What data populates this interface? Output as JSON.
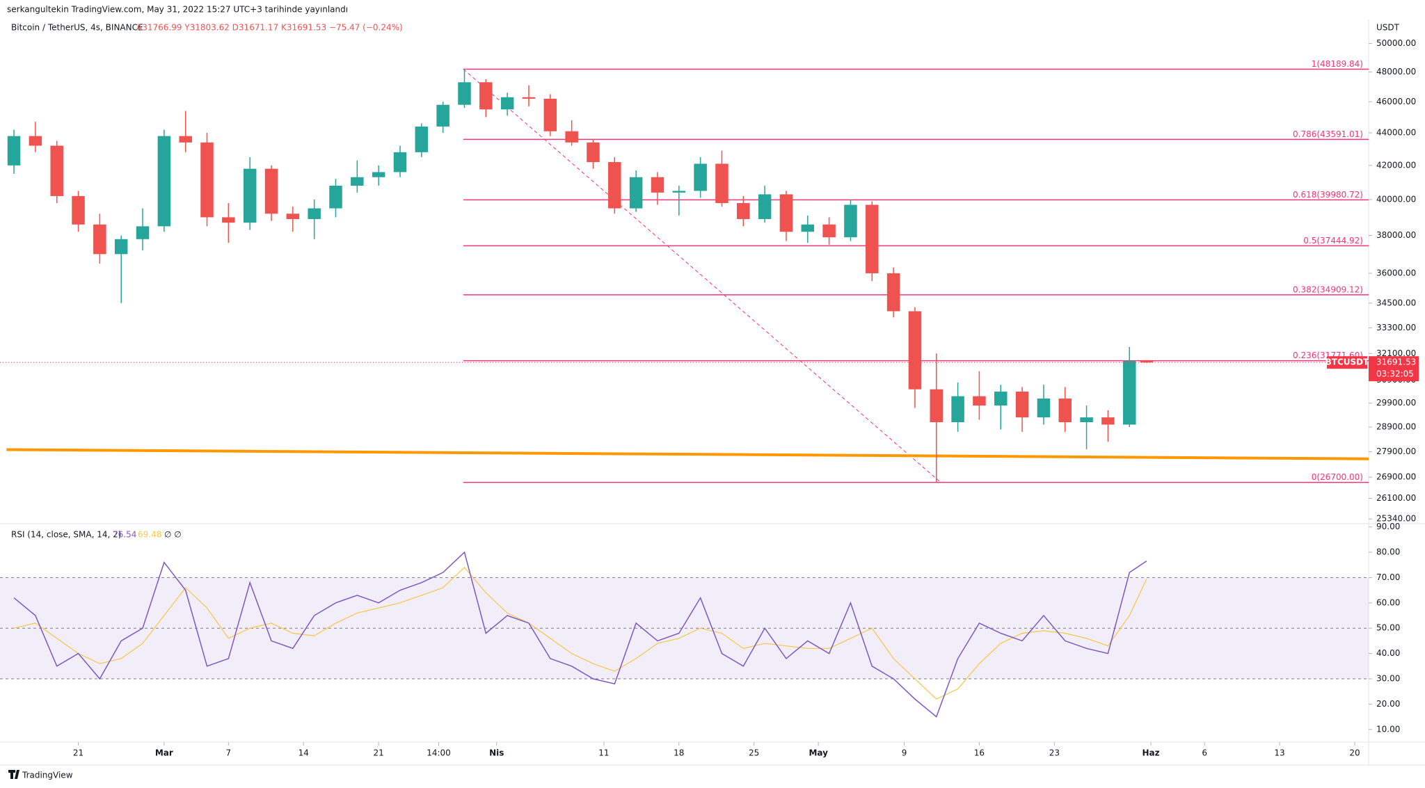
{
  "header": "serkangultekin TradingView.com, May 31, 2022 15:27 UTC+3 tarihinde yayınlandı",
  "footer": "TradingView",
  "chart_data": [
    {
      "type": "candlestick",
      "title": "Bitcoin / TetherUS, 4s, BINANCE",
      "ohlc_text": "A31766.99 Y31803.62 D31671.17 K31691.53 −75.47 (−0.24%)",
      "axis_label": "USDT",
      "log_scale": true,
      "up_color": "#26a69a",
      "down_color": "#ef5350",
      "xlim": [
        44.7,
        172.3
      ],
      "ylim": [
        25220,
        50520
      ],
      "yticks": [
        {
          "value": 50000,
          "label": "50000.00"
        },
        {
          "value": 48000,
          "label": "48000.00"
        },
        {
          "value": 46000,
          "label": "46000.00"
        },
        {
          "value": 44000,
          "label": "44000.00"
        },
        {
          "value": 42000,
          "label": "42000.00"
        },
        {
          "value": 40000,
          "label": "40000.00"
        },
        {
          "value": 38000,
          "label": "38000.00"
        },
        {
          "value": 36000,
          "label": "36000.00"
        },
        {
          "value": 34500,
          "label": "34500.00"
        },
        {
          "value": 33300,
          "label": "33300.00"
        },
        {
          "value": 32100,
          "label": "32100.00"
        },
        {
          "value": 30900,
          "label": "30900.00"
        },
        {
          "value": 29900,
          "label": "29900.00"
        },
        {
          "value": 28900,
          "label": "28900.00"
        },
        {
          "value": 27900,
          "label": "27900.00"
        },
        {
          "value": 26900,
          "label": "26900.00"
        },
        {
          "value": 26100,
          "label": "26100.00"
        },
        {
          "value": 25340,
          "label": "25340.00"
        }
      ],
      "x": [
        46,
        48,
        50,
        52,
        54,
        56,
        58,
        60,
        62,
        64,
        66,
        68,
        70,
        72,
        74,
        76,
        78,
        80,
        82,
        84,
        86,
        88,
        90,
        92,
        94,
        96,
        98,
        100,
        102,
        104,
        106,
        108,
        110,
        112,
        114,
        116,
        118,
        120,
        122,
        124,
        126,
        128,
        130,
        132,
        134,
        136,
        138,
        140,
        142,
        144,
        146,
        148,
        150,
        151.6
      ],
      "open": [
        42000,
        43800,
        43200,
        40200,
        38600,
        37000,
        37800,
        38500,
        43800,
        43400,
        39000,
        38700,
        41800,
        39200,
        38900,
        39500,
        40800,
        41300,
        41600,
        42800,
        44400,
        45800,
        47300,
        45500,
        46300,
        46200,
        44100,
        43400,
        42200,
        39500,
        41300,
        40400,
        40500,
        42100,
        39800,
        38900,
        40300,
        38200,
        38600,
        37900,
        39700,
        36000,
        34100,
        30500,
        29100,
        30200,
        29800,
        30400,
        29300,
        30100,
        29100,
        29300,
        29000,
        31766.99
      ],
      "high": [
        44200,
        44700,
        43500,
        40500,
        39200,
        38000,
        39500,
        44200,
        45400,
        44000,
        39800,
        42500,
        42000,
        39600,
        40000,
        41200,
        42300,
        42000,
        43200,
        44600,
        46000,
        48190,
        47500,
        46600,
        47100,
        46500,
        44800,
        43600,
        42500,
        41700,
        41600,
        40800,
        42500,
        42900,
        40200,
        40800,
        40500,
        39100,
        39000,
        40000,
        39900,
        36300,
        34300,
        32100,
        30800,
        31300,
        30700,
        30600,
        30700,
        30600,
        29800,
        29600,
        32400,
        31803.62
      ],
      "low": [
        41500,
        42800,
        39800,
        38200,
        36500,
        34500,
        37200,
        38200,
        42800,
        38500,
        37600,
        38300,
        38800,
        38200,
        37800,
        39000,
        40400,
        40800,
        41300,
        42500,
        44000,
        45600,
        45000,
        45100,
        45700,
        43800,
        43200,
        41800,
        39200,
        39300,
        39700,
        39100,
        40100,
        39600,
        38500,
        38700,
        37700,
        37600,
        37500,
        37700,
        35600,
        33800,
        29700,
        26700,
        28700,
        29200,
        28800,
        28700,
        29000,
        28700,
        28000,
        28300,
        28900,
        31671.17
      ],
      "close": [
        43800,
        43200,
        40200,
        38600,
        37000,
        37800,
        38500,
        43800,
        43400,
        39000,
        38700,
        41800,
        39200,
        38900,
        39500,
        40800,
        41300,
        41600,
        42800,
        44400,
        45800,
        47300,
        45500,
        46300,
        46200,
        44100,
        43400,
        42200,
        39500,
        41300,
        40400,
        40500,
        42100,
        39800,
        38900,
        40300,
        38200,
        38600,
        37900,
        39700,
        36000,
        34100,
        30500,
        29100,
        30200,
        29800,
        30400,
        29300,
        30100,
        29100,
        29300,
        29000,
        31766.99,
        31691.53
      ],
      "fib_color": "#f23674",
      "fib_levels": [
        {
          "value": 48189.84,
          "label": "1(48189.84)"
        },
        {
          "value": 43591.01,
          "label": "0.786(43591.01)"
        },
        {
          "value": 39980.72,
          "label": "0.618(39980.72)"
        },
        {
          "value": 37444.92,
          "label": "0.5(37444.92)"
        },
        {
          "value": 34909.12,
          "label": "0.382(34909.12)"
        },
        {
          "value": 31771.6,
          "label": "0.236(31771.60)"
        },
        {
          "value": 26700,
          "label": "0(26700.00)"
        }
      ],
      "fib_trend": {
        "x": [
          87.9,
          132.4
        ],
        "values": [
          48189.84,
          26700
        ]
      },
      "trendline": {
        "x": [
          45.3,
          172.3
        ],
        "values": [
          27980,
          27615
        ],
        "color": "#ff9800"
      },
      "last_price": {
        "symbol": "BTCUSDT",
        "value": 31691.53,
        "countdown": "03:32:05",
        "color": "#f23645"
      }
    },
    {
      "type": "line",
      "title": "RSI (14, close, SMA, 14, 2)",
      "status": "∅ ∅",
      "xlim": [
        44.7,
        172.3
      ],
      "ylim": [
        5,
        91
      ],
      "yticks": [
        {
          "value": 90,
          "label": "90.00"
        },
        {
          "value": 80,
          "label": "80.00"
        },
        {
          "value": 70,
          "label": "70.00"
        },
        {
          "value": 60,
          "label": "60.00"
        },
        {
          "value": 50,
          "label": "50.00"
        },
        {
          "value": 40,
          "label": "40.00"
        },
        {
          "value": 30,
          "label": "30.00"
        },
        {
          "value": 20,
          "label": "20.00"
        },
        {
          "value": 10,
          "label": "10.00"
        }
      ],
      "xticks": [
        {
          "value": 52,
          "label": "21"
        },
        {
          "value": 60,
          "label": "Mar"
        },
        {
          "value": 66,
          "label": "7"
        },
        {
          "value": 73,
          "label": "14"
        },
        {
          "value": 80,
          "label": "21"
        },
        {
          "value": 85.6,
          "label": "14:00"
        },
        {
          "value": 91,
          "label": "Nis"
        },
        {
          "value": 101,
          "label": "11"
        },
        {
          "value": 108,
          "label": "18"
        },
        {
          "value": 115,
          "label": "25"
        },
        {
          "value": 121,
          "label": "May"
        },
        {
          "value": 129,
          "label": "9"
        },
        {
          "value": 136,
          "label": "16"
        },
        {
          "value": 143,
          "label": "23"
        },
        {
          "value": 152,
          "label": "Haz"
        },
        {
          "value": 157,
          "label": "6"
        },
        {
          "value": 164,
          "label": "13"
        },
        {
          "value": 171,
          "label": "20"
        }
      ],
      "bands": [
        70,
        50,
        30
      ],
      "band_color": "#7e57c2",
      "x": [
        46,
        48,
        50,
        52,
        54,
        56,
        58,
        60,
        62,
        64,
        66,
        68,
        70,
        72,
        74,
        76,
        78,
        80,
        82,
        84,
        86,
        88,
        90,
        92,
        94,
        96,
        98,
        100,
        102,
        104,
        106,
        108,
        110,
        112,
        114,
        116,
        118,
        120,
        122,
        124,
        126,
        128,
        130,
        132,
        134,
        136,
        138,
        140,
        142,
        144,
        146,
        148,
        150,
        151.6
      ],
      "series": [
        {
          "color": "#7e57c2",
          "values": [
            62,
            55,
            35,
            40,
            30,
            45,
            50,
            76,
            65,
            35,
            38,
            68,
            45,
            42,
            55,
            60,
            63,
            60,
            65,
            68,
            72,
            80,
            48,
            55,
            52,
            38,
            35,
            30,
            28,
            52,
            45,
            48,
            62,
            40,
            35,
            50,
            38,
            45,
            40,
            60,
            35,
            30,
            22,
            15,
            38,
            52,
            48,
            45,
            55,
            45,
            42,
            40,
            72,
            76.54
          ]
        },
        {
          "color": "#f7c548",
          "values": [
            50,
            52,
            46,
            40,
            36,
            38,
            44,
            55,
            66,
            58,
            46,
            50,
            52,
            48,
            47,
            52,
            56,
            58,
            60,
            63,
            66,
            74,
            64,
            56,
            52,
            46,
            40,
            36,
            33,
            38,
            44,
            46,
            50,
            48,
            42,
            44,
            43,
            42,
            42,
            46,
            50,
            38,
            30,
            22,
            26,
            36,
            44,
            48,
            49,
            48,
            46,
            43,
            55,
            69.48
          ]
        }
      ]
    }
  ]
}
